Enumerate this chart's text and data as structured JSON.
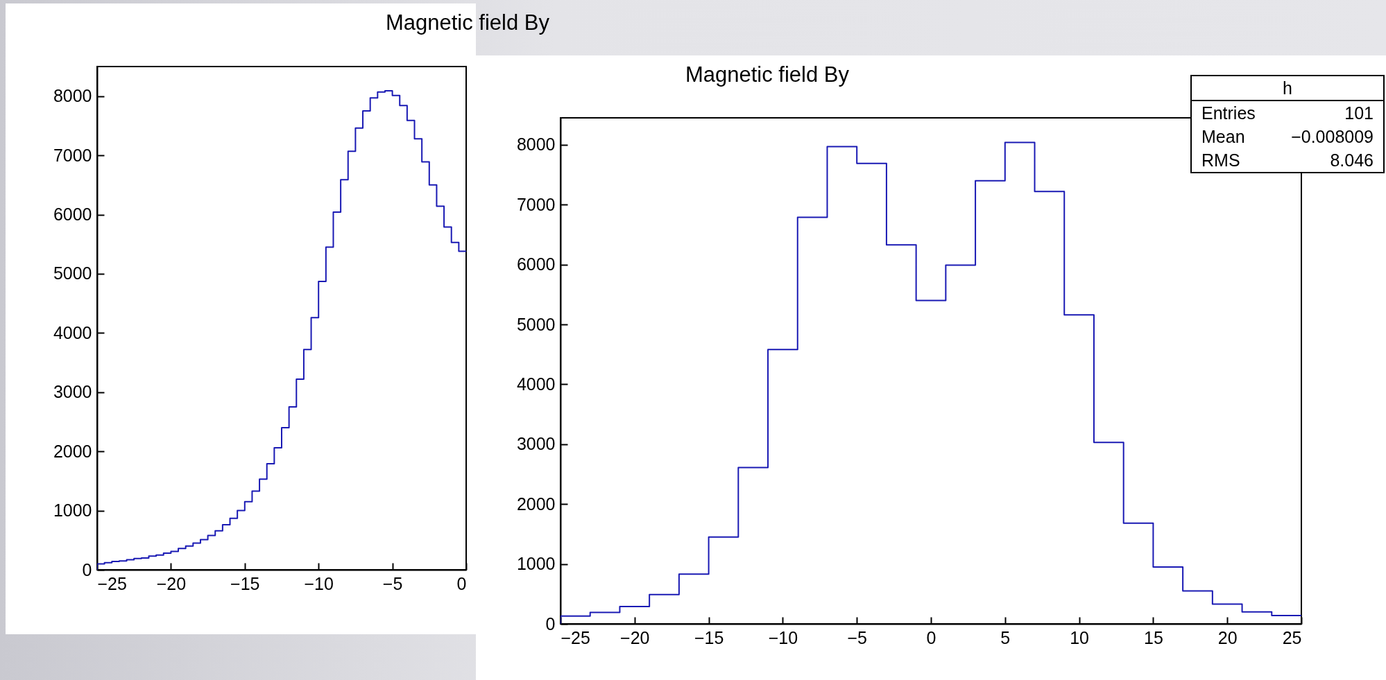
{
  "chart_data": [
    {
      "type": "histogram",
      "title": "Magnetic field By",
      "color": "#1a1ab4",
      "bins": [
        -25,
        -24.5,
        -24,
        -23.5,
        -23,
        -22.5,
        -22,
        -21.5,
        -21,
        -20.5,
        -20,
        -19.5,
        -19,
        -18.5,
        -18,
        -17.5,
        -17,
        -16.5,
        -16,
        -15.5,
        -15,
        -14.5,
        -14,
        -13.5,
        -13,
        -12.5,
        -12,
        -11.5,
        -11,
        -10.5,
        -10,
        -9.5,
        -9,
        -8.5,
        -8,
        -7.5,
        -7,
        -6.5,
        -6,
        -5.5,
        -5,
        -4.5,
        -4,
        -3.5,
        -3,
        -2.5,
        -2,
        -1.5,
        -1,
        -0.5,
        0
      ],
      "values": [
        100,
        120,
        140,
        150,
        170,
        190,
        200,
        230,
        250,
        280,
        310,
        360,
        400,
        450,
        510,
        580,
        660,
        760,
        870,
        1000,
        1150,
        1330,
        1530,
        1790,
        2060,
        2400,
        2750,
        3220,
        3720,
        4260,
        4870,
        5450,
        6040,
        6590,
        7070,
        7460,
        7750,
        7970,
        8070,
        8090,
        8010,
        7840,
        7590,
        7280,
        6890,
        6500,
        6140,
        5790,
        5530,
        5380
      ],
      "xlim": [
        -25,
        0
      ],
      "xticks": [
        -25,
        -20,
        -15,
        -10,
        -5,
        0
      ],
      "ylim": [
        0,
        8500
      ],
      "yticks": [
        0,
        1000,
        2000,
        3000,
        4000,
        5000,
        6000,
        7000,
        8000
      ]
    },
    {
      "type": "histogram",
      "title": "Magnetic field By",
      "color": "#1a1ab4",
      "bins": [
        -25,
        -23,
        -21,
        -19,
        -17,
        -15,
        -13,
        -11,
        -9,
        -7,
        -5,
        -3,
        -1,
        1,
        3,
        5,
        7,
        9,
        11,
        13,
        15,
        17,
        19,
        21,
        23,
        25
      ],
      "values": [
        130,
        190,
        290,
        490,
        830,
        1450,
        2610,
        4580,
        6790,
        7970,
        7690,
        6330,
        5400,
        5990,
        7400,
        8040,
        7220,
        5160,
        3030,
        1680,
        950,
        550,
        330,
        200,
        140
      ],
      "xlim": [
        -25,
        25
      ],
      "xticks": [
        -25,
        -20,
        -15,
        -10,
        -5,
        0,
        5,
        10,
        15,
        20,
        25
      ],
      "ylim": [
        0,
        8450
      ],
      "yticks": [
        0,
        1000,
        2000,
        3000,
        4000,
        5000,
        6000,
        7000,
        8000
      ],
      "annotations": [
        "h",
        "Entries 101",
        "Mean −0.008009",
        "RMS 8.046"
      ]
    }
  ]
}
